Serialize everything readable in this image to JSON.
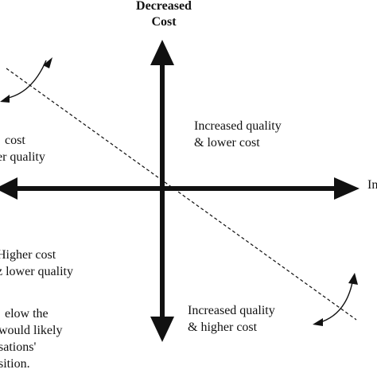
{
  "axis_labels": {
    "top_line1": "Decreased",
    "top_line2": "Cost",
    "right_partial": "In"
  },
  "quadrants": {
    "top_right": [
      "Increased quality",
      "& lower cost"
    ],
    "top_left": [
      "cost",
      "er quality"
    ],
    "bottom_left": [
      "Higher cost",
      "z lower quality"
    ],
    "bottom_right": [
      "Increased quality",
      "& higher cost"
    ]
  },
  "note_lines": [
    "elow the",
    "would likely",
    "sations'",
    "sition."
  ]
}
